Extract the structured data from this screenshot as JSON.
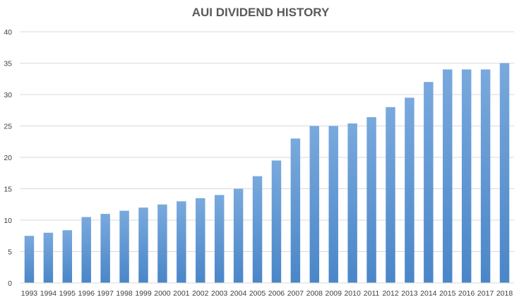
{
  "chart_data": {
    "type": "bar",
    "title": "AUI DIVIDEND HISTORY",
    "xlabel": "",
    "ylabel": "",
    "ylim": [
      0,
      40
    ],
    "yticks": [
      0,
      5,
      10,
      15,
      20,
      25,
      30,
      35,
      40
    ],
    "grid": true,
    "legend": "none",
    "bar_color_top": "#79a9dd",
    "bar_color_bottom": "#4a86c8",
    "categories": [
      "1993",
      "1994",
      "1995",
      "1996",
      "1997",
      "1998",
      "1999",
      "2000",
      "2001",
      "2002",
      "2003",
      "2004",
      "2005",
      "2006",
      "2007",
      "2008",
      "2009",
      "2010",
      "2011",
      "2012",
      "2013",
      "2014",
      "2015",
      "2016",
      "2017",
      "2018"
    ],
    "values": [
      7.5,
      8,
      8.4,
      10.5,
      11,
      11.5,
      12,
      12.5,
      13,
      13.5,
      14,
      15,
      17,
      19.5,
      23,
      25,
      25,
      25.4,
      26.4,
      28,
      29.5,
      32,
      34,
      34,
      34,
      35
    ]
  }
}
